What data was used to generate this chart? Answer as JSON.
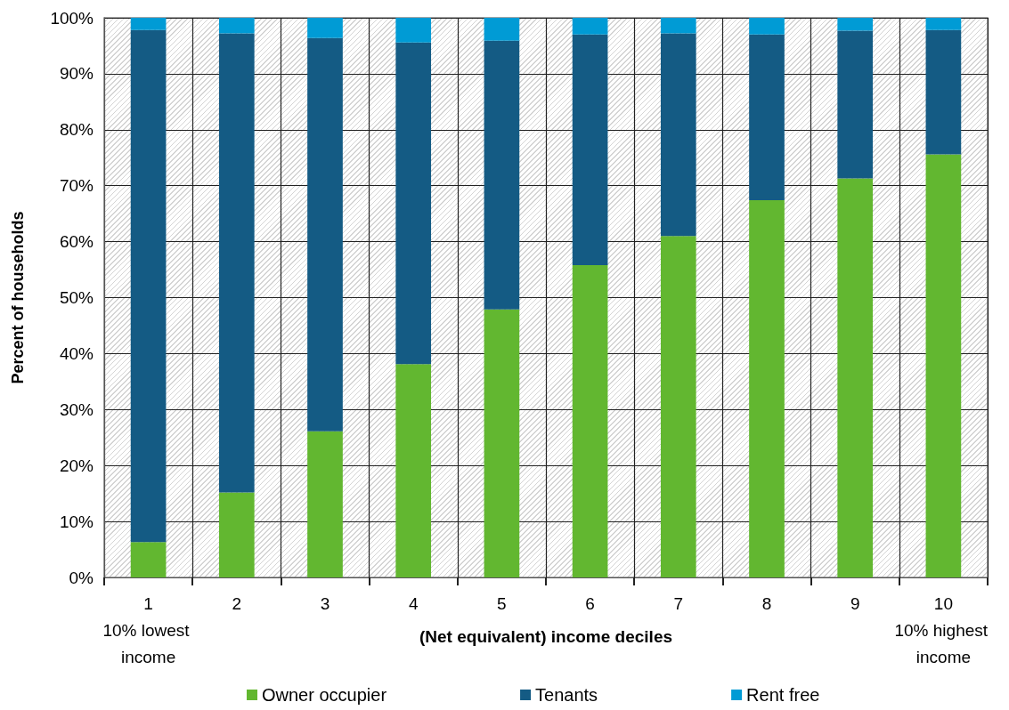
{
  "chart_data": {
    "type": "bar",
    "stacked": true,
    "xlabel": "(Net equivalent) income deciles",
    "ylabel": "Percent of households",
    "categories": [
      "1\n10% lowest income",
      "2",
      "3",
      "4",
      "5",
      "6",
      "7",
      "8",
      "9",
      "10\n10% highest income"
    ],
    "series": [
      {
        "name": "Owner occupier",
        "color": "#62b730",
        "values": [
          6.3,
          15.2,
          26.1,
          38.1,
          47.9,
          55.8,
          61.0,
          67.4,
          71.3,
          75.6
        ]
      },
      {
        "name": "Tenants",
        "color": "#145b84",
        "values": [
          91.5,
          82.0,
          70.3,
          57.5,
          48.0,
          41.2,
          36.2,
          29.6,
          26.4,
          22.2
        ]
      },
      {
        "name": "Rent free",
        "color": "#009bd5",
        "values": [
          2.2,
          2.8,
          3.6,
          4.4,
          4.1,
          3.0,
          2.8,
          3.0,
          2.3,
          2.2
        ]
      }
    ],
    "ylim": [
      0,
      100
    ],
    "yticks": [
      {
        "value": 0,
        "label": "0%"
      },
      {
        "value": 10,
        "label": "10%"
      },
      {
        "value": 20,
        "label": "20%"
      },
      {
        "value": 30,
        "label": "30%"
      },
      {
        "value": 40,
        "label": "40%"
      },
      {
        "value": 50,
        "label": "50%"
      },
      {
        "value": 60,
        "label": "60%"
      },
      {
        "value": 70,
        "label": "70%"
      },
      {
        "value": 80,
        "label": "80%"
      },
      {
        "value": 90,
        "label": "90%"
      },
      {
        "value": 100,
        "label": "100%"
      }
    ],
    "grid": true,
    "legend": "bottom"
  }
}
